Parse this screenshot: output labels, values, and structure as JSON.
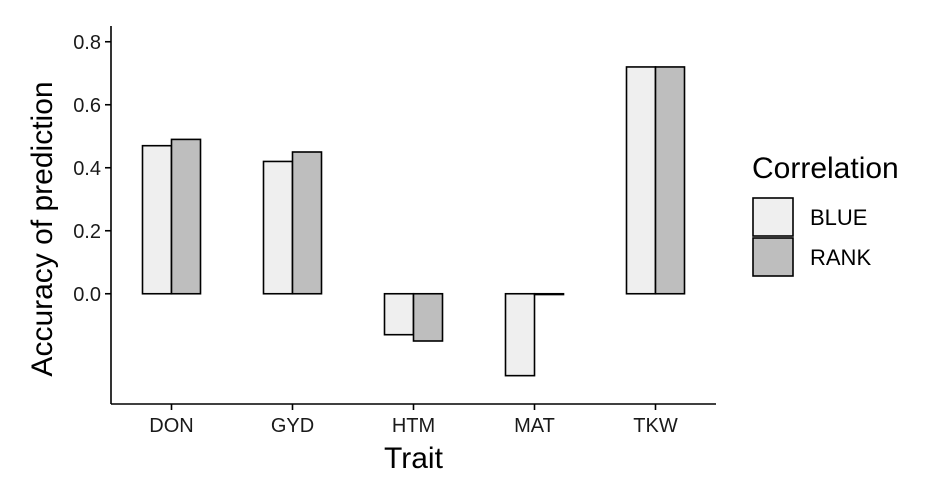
{
  "chart_data": {
    "type": "bar",
    "xlabel": "Trait",
    "ylabel": "Accuracy of prediction",
    "categories": [
      "DON",
      "GYD",
      "HTM",
      "MAT",
      "TKW"
    ],
    "series": [
      {
        "name": "BLUE",
        "color": "#efefef",
        "values": [
          0.47,
          0.42,
          -0.13,
          -0.26,
          0.72
        ]
      },
      {
        "name": "RANK",
        "color": "#bebebe",
        "values": [
          0.49,
          0.45,
          -0.15,
          0.0,
          0.72
        ]
      }
    ],
    "ylim": [
      -0.35,
      0.85
    ],
    "yticks": [
      0.0,
      0.2,
      0.4,
      0.6,
      0.8
    ],
    "ytick_labels": [
      "0.0",
      "0.2",
      "0.4",
      "0.6",
      "0.8"
    ],
    "legend": {
      "title": "Correlation",
      "position": "right"
    },
    "grid": false
  }
}
